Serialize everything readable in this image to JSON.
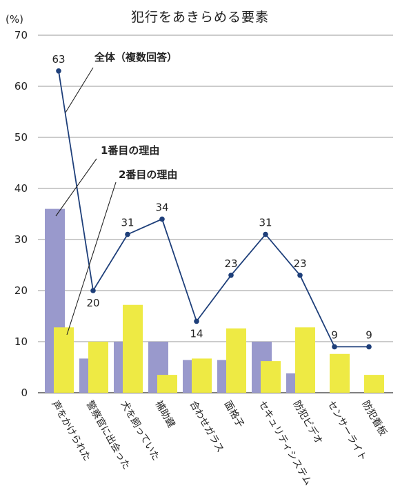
{
  "chart_data": {
    "type": "bar",
    "title": "犯行をあきらめる要素",
    "ylabel": "(%)",
    "ylim": [
      0,
      70
    ],
    "yticks": [
      0,
      10,
      20,
      30,
      40,
      50,
      60,
      70
    ],
    "grid": true,
    "categories": [
      "声をかけられた",
      "警察官に出会った",
      "犬を飼っていた",
      "補助鍵",
      "合わせガラス",
      "面格子",
      "セキュリティシステム",
      "防犯ビデオ",
      "センサーライト",
      "防犯看板"
    ],
    "series": [
      {
        "name": "1番目の理由",
        "type": "bar",
        "color": "#9999cc",
        "values": [
          36,
          6.7,
          10,
          10,
          6.4,
          6.4,
          10,
          3.8,
          0,
          0
        ]
      },
      {
        "name": "2番目の理由",
        "type": "bar",
        "color": "#eeea44",
        "values": [
          12.8,
          10,
          17.2,
          3.5,
          6.7,
          12.6,
          6.2,
          12.8,
          7.6,
          3.5
        ]
      },
      {
        "name": "全体（複数回答）",
        "type": "line",
        "color": "#1e3f7a",
        "values": [
          63,
          20,
          31,
          34,
          14,
          23,
          31,
          23,
          9,
          9
        ],
        "labels": [
          "63",
          "20",
          "31",
          "34",
          "14",
          "23",
          "31",
          "23",
          "9",
          "9"
        ]
      }
    ]
  }
}
